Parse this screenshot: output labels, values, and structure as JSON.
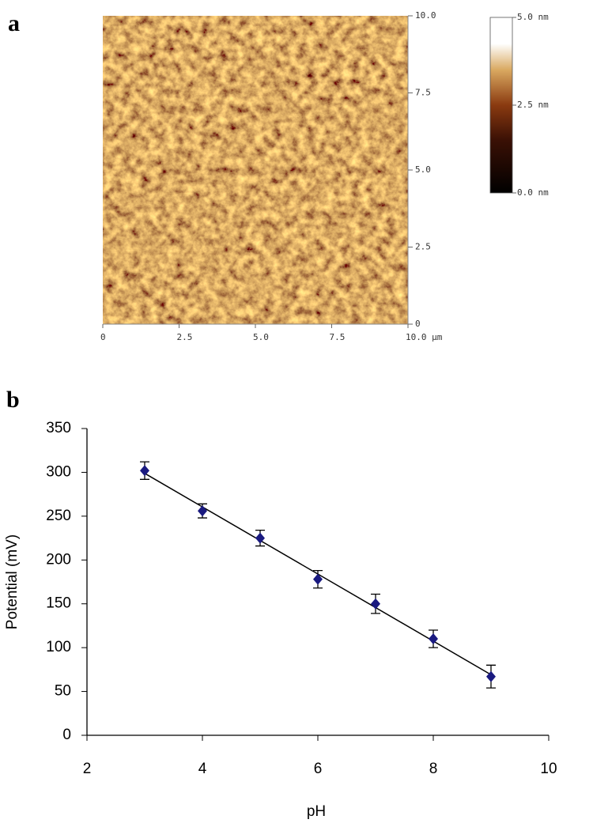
{
  "panel_labels": [
    "a",
    "b"
  ],
  "chart_data": [
    {
      "type": "image",
      "xlim": [
        0,
        10
      ],
      "xticks": [
        0,
        2.5,
        {
          "value": 5,
          "label": "5.0"
        },
        7.5,
        {
          "value": 10,
          "label": "10.0 µm"
        }
      ],
      "ylim": [
        0,
        10
      ],
      "yticks": [
        0,
        2.5,
        {
          "value": 5,
          "label": "5.0"
        },
        7.5,
        {
          "value": 10,
          "label": "10.0"
        }
      ],
      "colorbar": {
        "lim": [
          0,
          5
        ],
        "ticks": [
          {
            "value": 0,
            "label": "0.0 nm"
          },
          {
            "value": 2.5,
            "label": "2.5 nm"
          },
          {
            "value": 5,
            "label": "5.0 nm"
          }
        ]
      }
    },
    {
      "type": "scatter",
      "x": [
        3,
        4,
        5,
        6,
        7,
        8,
        9
      ],
      "values": [
        302,
        256,
        225,
        178,
        150,
        110,
        67
      ],
      "errors": [
        10,
        8,
        9,
        10,
        11,
        10,
        13
      ],
      "color": "#1a1a80",
      "trendline": "linear",
      "xlim": [
        2,
        10
      ],
      "xticks": [
        2,
        4,
        6,
        8,
        10
      ],
      "ylim": [
        0,
        350
      ],
      "yticks": [
        0,
        50,
        100,
        150,
        200,
        250,
        300,
        350
      ],
      "xlabel": "pH",
      "ylabel": "Potential (mV)"
    }
  ]
}
